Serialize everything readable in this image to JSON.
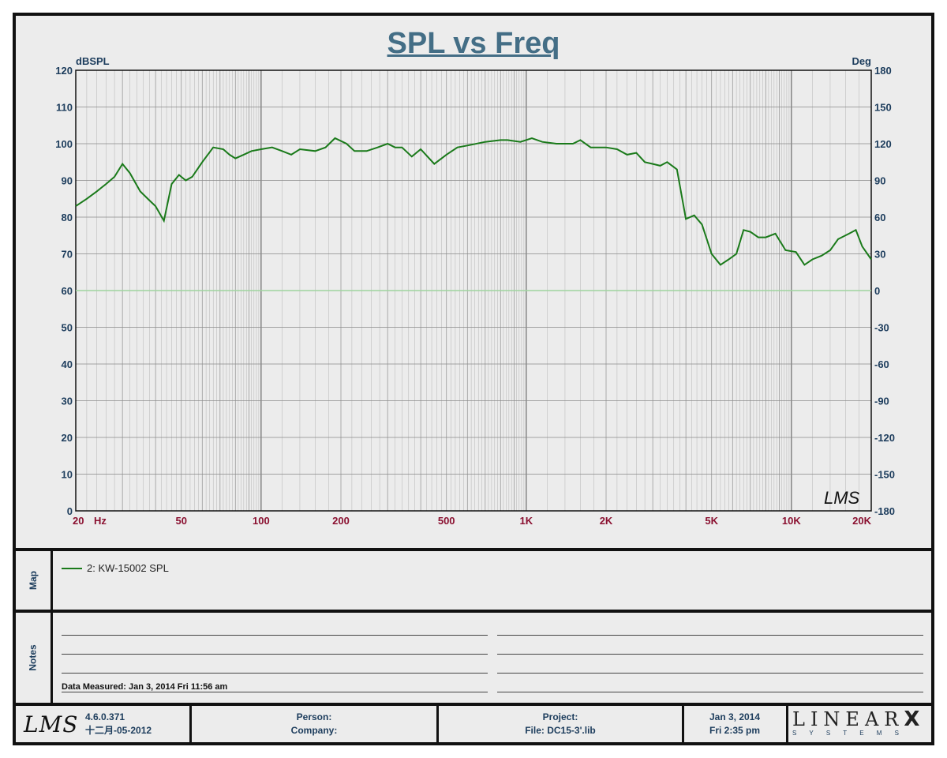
{
  "chart_data": {
    "type": "line",
    "title": "SPL vs Freq",
    "ylabel": "dBSPL",
    "y2label": "Deg",
    "ylim": [
      0,
      120
    ],
    "y2lim": [
      -180,
      180
    ],
    "xscale": "log",
    "xlim": [
      20,
      20000
    ],
    "yticks": [
      "120",
      "110",
      "100",
      "90",
      "80",
      "70",
      "60",
      "50",
      "40",
      "30",
      "20",
      "10",
      "0"
    ],
    "y2ticks": [
      "180",
      "150",
      "120",
      "90",
      "60",
      "30",
      "0",
      "-30",
      "-60",
      "-90",
      "-120",
      "-150",
      "-180"
    ],
    "xticks": [
      {
        "value": 20,
        "label": "20"
      },
      {
        "value": 50,
        "label": "50"
      },
      {
        "value": 100,
        "label": "100"
      },
      {
        "value": 200,
        "label": "200"
      },
      {
        "value": 500,
        "label": "500"
      },
      {
        "value": 1000,
        "label": "1K"
      },
      {
        "value": 2000,
        "label": "2K"
      },
      {
        "value": 5000,
        "label": "5K"
      },
      {
        "value": 10000,
        "label": "10K"
      },
      {
        "value": 20000,
        "label": "20K"
      }
    ],
    "xunit": "Hz",
    "grid": true,
    "reference_line_y": 60,
    "series": [
      {
        "name": "2: KW-15002 SPL",
        "color": "#1a7a1a",
        "points": [
          [
            20,
            83
          ],
          [
            22,
            85
          ],
          [
            24,
            87
          ],
          [
            26,
            89
          ],
          [
            28,
            91
          ],
          [
            30,
            94.5
          ],
          [
            32,
            92
          ],
          [
            35,
            87
          ],
          [
            38,
            84.5
          ],
          [
            40,
            83
          ],
          [
            43,
            79
          ],
          [
            46,
            89
          ],
          [
            49,
            91.5
          ],
          [
            52,
            90
          ],
          [
            55,
            91
          ],
          [
            60,
            95
          ],
          [
            66,
            99
          ],
          [
            72,
            98.5
          ],
          [
            76,
            97
          ],
          [
            80,
            96
          ],
          [
            86,
            97
          ],
          [
            92,
            98
          ],
          [
            100,
            98.5
          ],
          [
            110,
            99
          ],
          [
            120,
            98
          ],
          [
            130,
            97
          ],
          [
            140,
            98.5
          ],
          [
            160,
            98
          ],
          [
            175,
            99
          ],
          [
            190,
            101.5
          ],
          [
            210,
            100
          ],
          [
            225,
            98
          ],
          [
            250,
            98
          ],
          [
            275,
            99
          ],
          [
            300,
            100
          ],
          [
            320,
            99
          ],
          [
            340,
            99
          ],
          [
            370,
            96.5
          ],
          [
            400,
            98.5
          ],
          [
            450,
            94.5
          ],
          [
            500,
            97
          ],
          [
            550,
            99
          ],
          [
            600,
            99.5
          ],
          [
            700,
            100.5
          ],
          [
            800,
            101
          ],
          [
            850,
            101
          ],
          [
            950,
            100.5
          ],
          [
            1050,
            101.5
          ],
          [
            1150,
            100.5
          ],
          [
            1300,
            100
          ],
          [
            1500,
            100
          ],
          [
            1600,
            101
          ],
          [
            1750,
            99
          ],
          [
            2000,
            99
          ],
          [
            2200,
            98.5
          ],
          [
            2400,
            97
          ],
          [
            2600,
            97.5
          ],
          [
            2800,
            95
          ],
          [
            3000,
            94.5
          ],
          [
            3200,
            94
          ],
          [
            3400,
            95
          ],
          [
            3700,
            93
          ],
          [
            4000,
            79.5
          ],
          [
            4300,
            80.5
          ],
          [
            4600,
            78
          ],
          [
            5000,
            70
          ],
          [
            5400,
            67
          ],
          [
            5800,
            68.5
          ],
          [
            6200,
            70
          ],
          [
            6600,
            76.5
          ],
          [
            7000,
            76
          ],
          [
            7500,
            74.5
          ],
          [
            8000,
            74.5
          ],
          [
            8700,
            75.5
          ],
          [
            9500,
            71
          ],
          [
            10400,
            70.5
          ],
          [
            11200,
            67
          ],
          [
            12000,
            68.5
          ],
          [
            13000,
            69.5
          ],
          [
            14000,
            71
          ],
          [
            15000,
            74
          ],
          [
            16500,
            75.5
          ],
          [
            17500,
            76.5
          ],
          [
            18500,
            72
          ],
          [
            20000,
            68.5
          ]
        ]
      }
    ]
  },
  "map": {
    "label": "Map",
    "legend": "2: KW-15002  SPL"
  },
  "notes": {
    "label": "Notes",
    "measured": "Data Measured: Jan  3, 2014  Fri 11:56 am"
  },
  "footer": {
    "logo": "LMS",
    "version": "4.6.0.371",
    "build_date": "十二月-05-2012",
    "person": "Person:",
    "company": "Company:",
    "project": "Project:",
    "file": "File: DC15-3'.lib",
    "date": "Jan  3, 2014",
    "time": "Fri  2:35 pm",
    "brand_top": "LINEAR",
    "brand_x": "X",
    "brand_bottom": "S Y S T E M S"
  },
  "watermark": "LMS"
}
